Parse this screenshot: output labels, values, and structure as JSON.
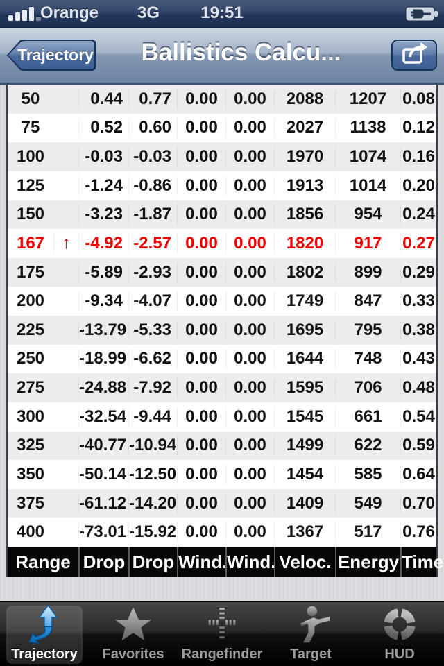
{
  "status_bar": {
    "carrier": "Orange",
    "network": "3G",
    "time": "19:51",
    "signal_icon": "signal-strength-4-of-5",
    "battery_icon": "battery-charging"
  },
  "nav_bar": {
    "back_label": "Trajectory",
    "title": "Ballistics Calcu...",
    "share_icon": "share-action"
  },
  "table": {
    "highlight_color": "#ee0000",
    "footer_headers": [
      "Range",
      "Drop",
      "Drop",
      "Wind.",
      "Wind.",
      "Veloc.",
      "Energy",
      "Time"
    ],
    "rows": [
      {
        "range": "50",
        "marker": "",
        "drop1": "0.44",
        "drop2": "0.77",
        "wind1": "0.00",
        "wind2": "0.00",
        "velocity": "2088",
        "energy": "1207",
        "time": "0.08",
        "highlight": false
      },
      {
        "range": "75",
        "marker": "",
        "drop1": "0.52",
        "drop2": "0.60",
        "wind1": "0.00",
        "wind2": "0.00",
        "velocity": "2027",
        "energy": "1138",
        "time": "0.12",
        "highlight": false
      },
      {
        "range": "100",
        "marker": "",
        "drop1": "-0.03",
        "drop2": "-0.03",
        "wind1": "0.00",
        "wind2": "0.00",
        "velocity": "1970",
        "energy": "1074",
        "time": "0.16",
        "highlight": false
      },
      {
        "range": "125",
        "marker": "",
        "drop1": "-1.24",
        "drop2": "-0.86",
        "wind1": "0.00",
        "wind2": "0.00",
        "velocity": "1913",
        "energy": "1014",
        "time": "0.20",
        "highlight": false
      },
      {
        "range": "150",
        "marker": "",
        "drop1": "-3.23",
        "drop2": "-1.87",
        "wind1": "0.00",
        "wind2": "0.00",
        "velocity": "1856",
        "energy": "954",
        "time": "0.24",
        "highlight": false
      },
      {
        "range": "167",
        "marker": "↑",
        "drop1": "-4.92",
        "drop2": "-2.57",
        "wind1": "0.00",
        "wind2": "0.00",
        "velocity": "1820",
        "energy": "917",
        "time": "0.27",
        "highlight": true
      },
      {
        "range": "175",
        "marker": "",
        "drop1": "-5.89",
        "drop2": "-2.93",
        "wind1": "0.00",
        "wind2": "0.00",
        "velocity": "1802",
        "energy": "899",
        "time": "0.29",
        "highlight": false
      },
      {
        "range": "200",
        "marker": "",
        "drop1": "-9.34",
        "drop2": "-4.07",
        "wind1": "0.00",
        "wind2": "0.00",
        "velocity": "1749",
        "energy": "847",
        "time": "0.33",
        "highlight": false
      },
      {
        "range": "225",
        "marker": "",
        "drop1": "-13.79",
        "drop2": "-5.33",
        "wind1": "0.00",
        "wind2": "0.00",
        "velocity": "1695",
        "energy": "795",
        "time": "0.38",
        "highlight": false
      },
      {
        "range": "250",
        "marker": "",
        "drop1": "-18.99",
        "drop2": "-6.62",
        "wind1": "0.00",
        "wind2": "0.00",
        "velocity": "1644",
        "energy": "748",
        "time": "0.43",
        "highlight": false
      },
      {
        "range": "275",
        "marker": "",
        "drop1": "-24.88",
        "drop2": "-7.92",
        "wind1": "0.00",
        "wind2": "0.00",
        "velocity": "1595",
        "energy": "706",
        "time": "0.48",
        "highlight": false
      },
      {
        "range": "300",
        "marker": "",
        "drop1": "-32.54",
        "drop2": "-9.44",
        "wind1": "0.00",
        "wind2": "0.00",
        "velocity": "1545",
        "energy": "661",
        "time": "0.54",
        "highlight": false
      },
      {
        "range": "325",
        "marker": "",
        "drop1": "-40.77",
        "drop2": "-10.94",
        "wind1": "0.00",
        "wind2": "0.00",
        "velocity": "1499",
        "energy": "622",
        "time": "0.59",
        "highlight": false
      },
      {
        "range": "350",
        "marker": "",
        "drop1": "-50.14",
        "drop2": "-12.50",
        "wind1": "0.00",
        "wind2": "0.00",
        "velocity": "1454",
        "energy": "585",
        "time": "0.64",
        "highlight": false
      },
      {
        "range": "375",
        "marker": "",
        "drop1": "-61.12",
        "drop2": "-14.20",
        "wind1": "0.00",
        "wind2": "0.00",
        "velocity": "1409",
        "energy": "549",
        "time": "0.70",
        "highlight": false
      },
      {
        "range": "400",
        "marker": "",
        "drop1": "-73.01",
        "drop2": "-15.92",
        "wind1": "0.00",
        "wind2": "0.00",
        "velocity": "1367",
        "energy": "517",
        "time": "0.76",
        "highlight": false
      }
    ]
  },
  "tab_bar": {
    "items": [
      {
        "label": "Trajectory",
        "icon": "trajectory-arrow-icon",
        "selected": true
      },
      {
        "label": "Favorites",
        "icon": "star-icon",
        "selected": false
      },
      {
        "label": "Rangefinder",
        "icon": "reticle-icon",
        "selected": false
      },
      {
        "label": "Target",
        "icon": "shooter-icon",
        "selected": false
      },
      {
        "label": "HUD",
        "icon": "hud-ring-icon",
        "selected": false
      }
    ]
  }
}
